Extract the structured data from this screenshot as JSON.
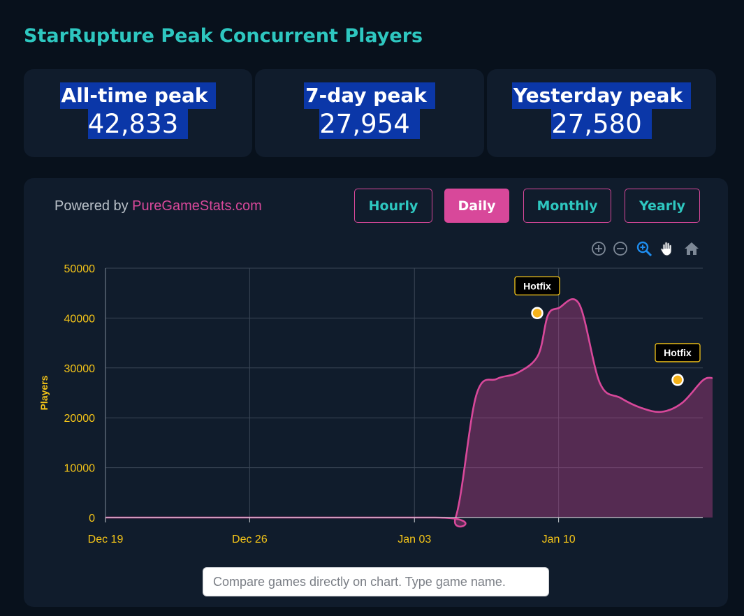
{
  "page": {
    "title": "StarRupture Peak Concurrent Players"
  },
  "stats": [
    {
      "label": "All-time peak",
      "value": "42,833"
    },
    {
      "label": "7-day peak",
      "value": "27,954"
    },
    {
      "label": "Yesterday peak",
      "value": "27,580"
    }
  ],
  "powered": {
    "prefix": "Powered by ",
    "brand": "PureGameStats.com"
  },
  "tabs": [
    "Hourly",
    "Daily",
    "Monthly",
    "Yearly"
  ],
  "active_tab": "Daily",
  "toolbar_icons": [
    "zoom-in-icon",
    "zoom-out-icon",
    "zoom-selection-icon",
    "pan-hand-icon",
    "home-reset-icon"
  ],
  "compare": {
    "placeholder": "Compare games directly on chart. Type game name."
  },
  "colors": {
    "accent_pink": "#d8489a",
    "accent_teal": "#2ec7c0",
    "axis_text": "#f5c518",
    "annotation_dot": "#f5b21a"
  },
  "chart_data": {
    "type": "area",
    "ylabel": "Players",
    "ylim": [
      0,
      50000
    ],
    "yticks": [
      0,
      10000,
      20000,
      30000,
      40000,
      50000
    ],
    "xticks": [
      {
        "label": "Dec 19",
        "x": "2025-12-19"
      },
      {
        "label": "Dec 26",
        "x": "2025-12-26"
      },
      {
        "label": "Jan 03",
        "x": "2026-01-03"
      },
      {
        "label": "Jan 10",
        "x": "2026-01-10"
      }
    ],
    "xlim": [
      "2025-12-19",
      "2026-01-17"
    ],
    "grid": true,
    "series": [
      {
        "color": "#d8489a",
        "points": [
          [
            "2025-12-19",
            0
          ],
          [
            "2026-01-04",
            0
          ],
          [
            "2026-01-05",
            0
          ],
          [
            "2026-01-06",
            24500
          ],
          [
            "2026-01-07",
            27800
          ],
          [
            "2026-01-08",
            29000
          ],
          [
            "2026-01-09",
            32500
          ],
          [
            "2026-01-09",
            40500
          ],
          [
            "2026-01-10",
            42000
          ],
          [
            "2026-01-11",
            42800
          ],
          [
            "2026-01-12",
            27000
          ],
          [
            "2026-01-13",
            24000
          ],
          [
            "2026-01-14",
            22000
          ],
          [
            "2026-01-15",
            21200
          ],
          [
            "2026-01-16",
            23000
          ],
          [
            "2026-01-17",
            27500
          ],
          [
            "2026-01-17",
            28000
          ]
        ]
      }
    ],
    "annotations": [
      {
        "label": "Hotfix",
        "x": "2026-01-09",
        "y": 41000
      },
      {
        "label": "Hotfix",
        "x": "2026-01-17",
        "y": 27600
      }
    ]
  }
}
